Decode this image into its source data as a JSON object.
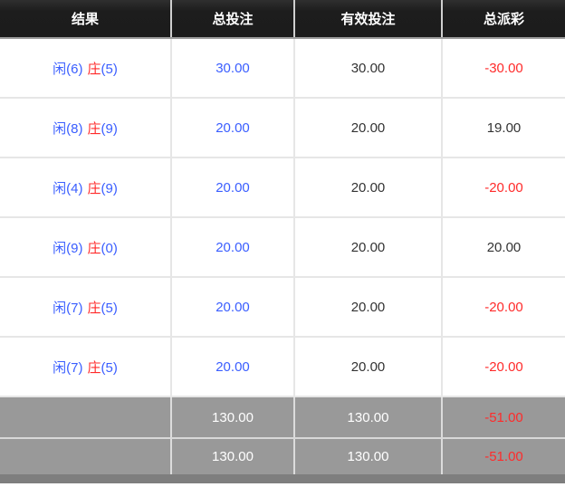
{
  "colors": {
    "header_bg": "#1f1f1f",
    "header_text": "#ffffff",
    "player_blue": "#3a5eff",
    "banker_red": "#ff2b2b",
    "negative_red": "#ff2b2b",
    "body_text": "#333333",
    "summary_bg": "#999999",
    "summary_text": "#ffffff",
    "row_border": "#e6e6e6",
    "bottom_bar": "#7e7e7e"
  },
  "table": {
    "headers": [
      "结果",
      "总投注",
      "有效投注",
      "总派彩"
    ],
    "rows": [
      {
        "player": "闲(6)",
        "banker_char": "庄",
        "banker_num": "(5)",
        "total_bet": "30.00",
        "valid_bet": "30.00",
        "payout": "-30.00",
        "payout_tone": "neg"
      },
      {
        "player": "闲(8)",
        "banker_char": "庄",
        "banker_num": "(9)",
        "total_bet": "20.00",
        "valid_bet": "20.00",
        "payout": "19.00",
        "payout_tone": "pos"
      },
      {
        "player": "闲(4)",
        "banker_char": "庄",
        "banker_num": "(9)",
        "total_bet": "20.00",
        "valid_bet": "20.00",
        "payout": "-20.00",
        "payout_tone": "neg"
      },
      {
        "player": "闲(9)",
        "banker_char": "庄",
        "banker_num": "(0)",
        "total_bet": "20.00",
        "valid_bet": "20.00",
        "payout": "20.00",
        "payout_tone": "pos"
      },
      {
        "player": "闲(7)",
        "banker_char": "庄",
        "banker_num": "(5)",
        "total_bet": "20.00",
        "valid_bet": "20.00",
        "payout": "-20.00",
        "payout_tone": "neg"
      },
      {
        "player": "闲(7)",
        "banker_char": "庄",
        "banker_num": "(5)",
        "total_bet": "20.00",
        "valid_bet": "20.00",
        "payout": "-20.00",
        "payout_tone": "neg"
      }
    ],
    "summary_rows": [
      {
        "result": "",
        "total_bet": "130.00",
        "valid_bet": "130.00",
        "payout": "-51.00",
        "payout_tone": "neg"
      },
      {
        "result": "",
        "total_bet": "130.00",
        "valid_bet": "130.00",
        "payout": "-51.00",
        "payout_tone": "neg"
      }
    ]
  }
}
